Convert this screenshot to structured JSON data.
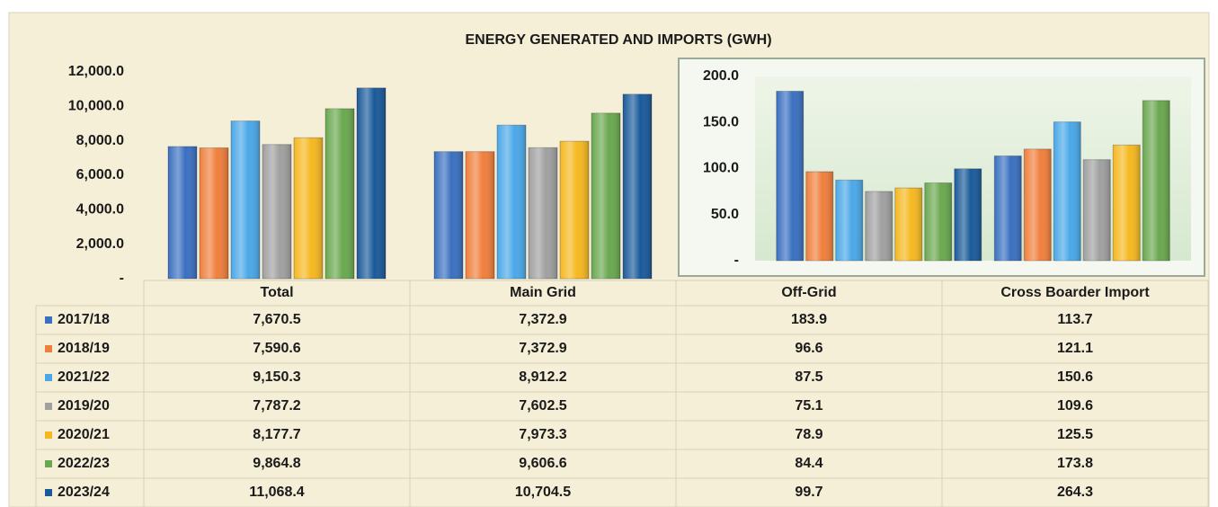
{
  "chart_data": {
    "type": "bar",
    "title": "ENERGY GENERATED AND IMPORTS (GWH)",
    "categories": [
      "Total",
      "Main Grid",
      "Off-Grid",
      "Cross Boarder Import"
    ],
    "series": [
      {
        "name": "2017/18",
        "color": "#3a70c0",
        "values": [
          7670.5,
          7372.9,
          183.9,
          113.7
        ],
        "value_labels": [
          "7,670.5",
          "7,372.9",
          "183.9",
          "113.7"
        ]
      },
      {
        "name": "2018/19",
        "color": "#f07f3c",
        "values": [
          7590.6,
          7372.9,
          96.6,
          121.1
        ],
        "value_labels": [
          "7,590.6",
          "7,372.9",
          "96.6",
          "121.1"
        ]
      },
      {
        "name": "2021/22",
        "color": "#4aa8e8",
        "values": [
          9150.3,
          8912.2,
          87.5,
          150.6
        ],
        "value_labels": [
          "9,150.3",
          "8,912.2",
          "87.5",
          "150.6"
        ]
      },
      {
        "name": "2019/20",
        "color": "#a0a0a0",
        "values": [
          7787.2,
          7602.5,
          75.1,
          109.6
        ],
        "value_labels": [
          "7,787.2",
          "7,602.5",
          "75.1",
          "109.6"
        ]
      },
      {
        "name": "2020/21",
        "color": "#f5b820",
        "values": [
          8177.7,
          7973.3,
          78.9,
          125.5
        ],
        "value_labels": [
          "8,177.7",
          "7,973.3",
          "78.9",
          "125.5"
        ]
      },
      {
        "name": "2022/23",
        "color": "#6aa84f",
        "values": [
          9864.8,
          9606.6,
          84.4,
          173.8
        ],
        "value_labels": [
          "9,864.8",
          "9,606.6",
          "84.4",
          "173.8"
        ]
      },
      {
        "name": "2023/24",
        "color": "#1a5a9a",
        "values": [
          11068.4,
          10704.5,
          99.7,
          264.3
        ],
        "value_labels": [
          "11,068.4",
          "10,704.5",
          "99.7",
          "264.3"
        ]
      }
    ],
    "ylim": [
      0,
      12000
    ],
    "yticks": [
      {
        "value": 0,
        "label": "-"
      },
      {
        "value": 2000,
        "label": "2,000.0"
      },
      {
        "value": 4000,
        "label": "4,000.0"
      },
      {
        "value": 6000,
        "label": "6,000.0"
      },
      {
        "value": 8000,
        "label": "8,000.0"
      },
      {
        "value": 10000,
        "label": "10,000.0"
      },
      {
        "value": 12000,
        "label": "12,000.0"
      }
    ],
    "inset": {
      "ylim": [
        0,
        200
      ],
      "yticks": [
        {
          "value": 0,
          "label": "-"
        },
        {
          "value": 50,
          "label": "50.0"
        },
        {
          "value": 100,
          "label": "100.0"
        },
        {
          "value": 150,
          "label": "150.0"
        },
        {
          "value": 200,
          "label": "200.0"
        }
      ]
    }
  }
}
